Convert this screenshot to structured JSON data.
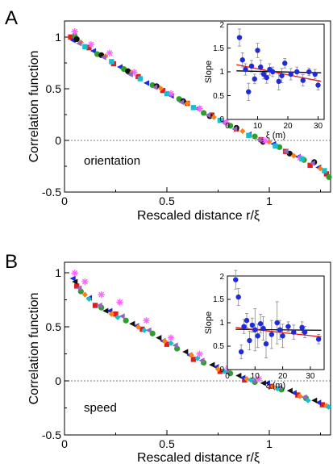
{
  "panels": [
    {
      "letter": "A",
      "annotation": "orientation",
      "chart_data": {
        "type": "scatter",
        "xlabel": "Rescaled distance r/ξ",
        "ylabel": "Correlation function",
        "xlim": [
          0,
          1.3
        ],
        "ylim": [
          -0.5,
          1.1
        ],
        "xticks": [
          "0",
          "0.5",
          "1"
        ],
        "yticks": [
          "-0.5",
          "0",
          "0.5",
          "1"
        ],
        "zero_line": true,
        "series": [
          {
            "color": "#e41a1c",
            "marker": "square",
            "x": [
              0.03,
              0.12,
              0.24,
              0.36,
              0.48,
              0.6,
              0.72,
              0.84,
              0.96,
              1.08,
              1.2,
              1.28
            ],
            "y": [
              0.95,
              0.85,
              0.7,
              0.58,
              0.45,
              0.33,
              0.22,
              0.09,
              -0.01,
              -0.12,
              -0.25,
              -0.33
            ]
          },
          {
            "color": "#1f2ad8",
            "marker": "triangle",
            "x": [
              0.04,
              0.14,
              0.27,
              0.4,
              0.52,
              0.65,
              0.78,
              0.9,
              1.02,
              1.14,
              1.24
            ],
            "y": [
              0.92,
              0.82,
              0.67,
              0.52,
              0.4,
              0.28,
              0.15,
              0.04,
              -0.05,
              -0.17,
              -0.27
            ]
          },
          {
            "color": "#2ca02c",
            "marker": "circle",
            "x": [
              0.05,
              0.16,
              0.29,
              0.43,
              0.56,
              0.68,
              0.81,
              0.93,
              1.05,
              1.17,
              1.3
            ],
            "y": [
              0.96,
              0.79,
              0.65,
              0.5,
              0.37,
              0.24,
              0.12,
              0.02,
              -0.08,
              -0.2,
              -0.36
            ]
          },
          {
            "color": "#111111",
            "marker": "circle",
            "x": [
              0.06,
              0.18,
              0.31,
              0.45,
              0.58,
              0.71,
              0.84,
              0.97,
              1.1,
              1.22
            ],
            "y": [
              0.93,
              0.78,
              0.63,
              0.49,
              0.35,
              0.21,
              0.1,
              -0.03,
              -0.14,
              -0.22
            ]
          },
          {
            "color": "#ff7f0e",
            "marker": "diamond",
            "x": [
              0.08,
              0.2,
              0.33,
              0.47,
              0.6,
              0.73,
              0.87,
              1.0,
              1.12,
              1.25
            ],
            "y": [
              0.9,
              0.77,
              0.62,
              0.47,
              0.33,
              0.2,
              0.07,
              -0.03,
              -0.16,
              -0.28
            ]
          },
          {
            "color": "#ff66ff",
            "marker": "star",
            "x": [
              0.05,
              0.13,
              0.22,
              0.34,
              0.52,
              0.66,
              0.79,
              0.98,
              1.15
            ],
            "y": [
              1.0,
              0.88,
              0.8,
              0.62,
              0.42,
              0.28,
              0.15,
              -0.02,
              -0.18
            ]
          },
          {
            "color": "#9467bd",
            "marker": "triangle",
            "x": [
              0.07,
              0.19,
              0.32,
              0.44,
              0.57,
              0.7,
              0.83,
              0.95,
              1.08,
              1.21
            ],
            "y": [
              0.89,
              0.76,
              0.6,
              0.48,
              0.34,
              0.22,
              0.09,
              -0.01,
              -0.12,
              -0.23
            ]
          },
          {
            "color": "#17becf",
            "marker": "square",
            "x": [
              0.1,
              0.23,
              0.37,
              0.5,
              0.63,
              0.76,
              0.9,
              1.03,
              1.16,
              1.27
            ],
            "y": [
              0.86,
              0.72,
              0.56,
              0.42,
              0.29,
              0.17,
              0.03,
              -0.07,
              -0.19,
              -0.3
            ]
          }
        ],
        "inset": {
          "xlabel": "ξ (m)",
          "ylabel": "Slope",
          "xlim": [
            0,
            32
          ],
          "ylim": [
            0,
            2
          ],
          "xticks": [
            "0",
            "10",
            "20",
            "30"
          ],
          "yticks": [
            "0",
            "0.5",
            "1",
            "1.5",
            "2"
          ],
          "points": {
            "x": [
              4,
              5,
              6,
              7,
              8,
              9,
              10,
              11,
              12,
              13,
              14,
              15,
              17,
              18,
              19,
              21,
              23,
              25,
              27,
              29,
              30
            ],
            "y": [
              1.72,
              1.25,
              1.05,
              0.58,
              1.12,
              0.85,
              1.45,
              1.1,
              0.95,
              0.88,
              1.05,
              1.0,
              0.8,
              0.92,
              1.18,
              0.95,
              1.0,
              0.82,
              1.0,
              0.95,
              0.72
            ],
            "err": [
              0.18,
              0.15,
              0.12,
              0.18,
              0.12,
              0.1,
              0.15,
              0.15,
              0.1,
              0.12,
              0.12,
              0.1,
              0.18,
              0.15,
              0.1,
              0.12,
              0.1,
              0.12,
              0.08,
              0.1,
              0.1
            ]
          },
          "fits": [
            {
              "color": "#000000",
              "y0": 1.02,
              "y1": 0.98
            },
            {
              "color": "#e41a1c",
              "y0": 1.15,
              "y1": 0.8
            }
          ]
        }
      }
    },
    {
      "letter": "B",
      "annotation": "speed",
      "chart_data": {
        "type": "scatter",
        "xlabel": "Rescaled distance r/ξ",
        "ylabel": "Correlation function",
        "xlim": [
          0,
          1.3
        ],
        "ylim": [
          -0.5,
          1.1
        ],
        "xticks": [
          "0",
          "0.5",
          "1"
        ],
        "yticks": [
          "-0.5",
          "0",
          "0.5",
          "1"
        ],
        "zero_line": true,
        "series": [
          {
            "color": "#e41a1c",
            "marker": "square",
            "x": [
              0.06,
              0.15,
              0.25,
              0.38,
              0.5,
              0.63,
              0.76,
              0.88,
              1.01,
              1.14,
              1.26
            ],
            "y": [
              0.88,
              0.7,
              0.62,
              0.48,
              0.34,
              0.2,
              0.09,
              0.01,
              -0.05,
              -0.13,
              -0.22
            ]
          },
          {
            "color": "#1f2ad8",
            "marker": "triangle",
            "x": [
              0.04,
              0.12,
              0.22,
              0.35,
              0.48,
              0.61,
              0.74,
              0.87,
              0.99,
              1.12,
              1.24
            ],
            "y": [
              0.95,
              0.77,
              0.65,
              0.51,
              0.37,
              0.24,
              0.13,
              0.03,
              -0.02,
              -0.11,
              -0.2
            ]
          },
          {
            "color": "#2ca02c",
            "marker": "circle",
            "x": [
              0.08,
              0.18,
              0.3,
              0.43,
              0.55,
              0.68,
              0.81,
              0.93,
              1.06,
              1.18
            ],
            "y": [
              0.83,
              0.68,
              0.56,
              0.44,
              0.3,
              0.17,
              0.07,
              -0.01,
              -0.08,
              -0.16
            ]
          },
          {
            "color": "#111111",
            "marker": "triangle",
            "x": [
              0.05,
              0.2,
              0.33,
              0.46,
              0.59,
              0.72,
              0.85,
              0.97,
              1.1,
              1.22
            ],
            "y": [
              0.92,
              0.65,
              0.53,
              0.4,
              0.27,
              0.15,
              0.05,
              -0.02,
              -0.09,
              -0.18
            ]
          },
          {
            "color": "#ff7f0e",
            "marker": "diamond",
            "x": [
              0.1,
              0.23,
              0.36,
              0.49,
              0.62,
              0.75,
              0.89,
              1.02,
              1.15,
              1.28
            ],
            "y": [
              0.8,
              0.62,
              0.5,
              0.37,
              0.24,
              0.11,
              0.02,
              -0.05,
              -0.14,
              -0.23
            ]
          },
          {
            "color": "#ff66ff",
            "marker": "star",
            "x": [
              0.05,
              0.1,
              0.18,
              0.27,
              0.4,
              0.52,
              0.66,
              0.8,
              0.95
            ],
            "y": [
              1.0,
              0.92,
              0.8,
              0.73,
              0.56,
              0.4,
              0.25,
              0.12,
              0.02
            ]
          },
          {
            "color": "#9467bd",
            "marker": "triangle",
            "x": [
              0.07,
              0.17,
              0.28,
              0.41,
              0.54,
              0.67,
              0.79,
              0.92,
              1.05,
              1.17
            ],
            "y": [
              0.86,
              0.7,
              0.6,
              0.47,
              0.33,
              0.19,
              0.08,
              0.0,
              -0.06,
              -0.15
            ]
          },
          {
            "color": "#17becf",
            "marker": "diamond",
            "x": [
              0.12,
              0.26,
              0.39,
              0.52,
              0.65,
              0.78,
              0.91,
              1.04,
              1.19,
              1.29
            ],
            "y": [
              0.76,
              0.59,
              0.47,
              0.35,
              0.21,
              0.09,
              0.01,
              -0.07,
              -0.18,
              -0.24
            ]
          }
        ],
        "inset": {
          "xlabel": "ξ (m)",
          "ylabel": "Slope",
          "xlim": [
            0,
            35
          ],
          "ylim": [
            0,
            2
          ],
          "xticks": [
            "0",
            "10",
            "20",
            "30"
          ],
          "yticks": [
            "0",
            "0.5",
            "1",
            "1.5",
            "2"
          ],
          "points": {
            "x": [
              3,
              4,
              5,
              6,
              7,
              8,
              9,
              10,
              11,
              12,
              13,
              14,
              16,
              18,
              19,
              20,
              22,
              24,
              27,
              28,
              33
            ],
            "y": [
              1.92,
              1.55,
              0.38,
              0.92,
              1.05,
              0.62,
              0.95,
              0.85,
              0.72,
              0.98,
              0.88,
              0.55,
              0.75,
              1.0,
              0.85,
              0.72,
              0.92,
              0.8,
              0.9,
              0.8,
              0.65
            ],
            "err": [
              0.2,
              0.18,
              0.15,
              0.15,
              0.15,
              0.2,
              0.15,
              0.45,
              0.25,
              0.2,
              0.25,
              0.3,
              0.3,
              0.45,
              0.2,
              0.25,
              0.1,
              0.15,
              0.12,
              0.12,
              0.1
            ]
          },
          "fits": [
            {
              "color": "#000000",
              "y0": 0.86,
              "y1": 0.84
            },
            {
              "color": "#e41a1c",
              "y0": 0.9,
              "y1": 0.7
            }
          ]
        }
      }
    }
  ]
}
